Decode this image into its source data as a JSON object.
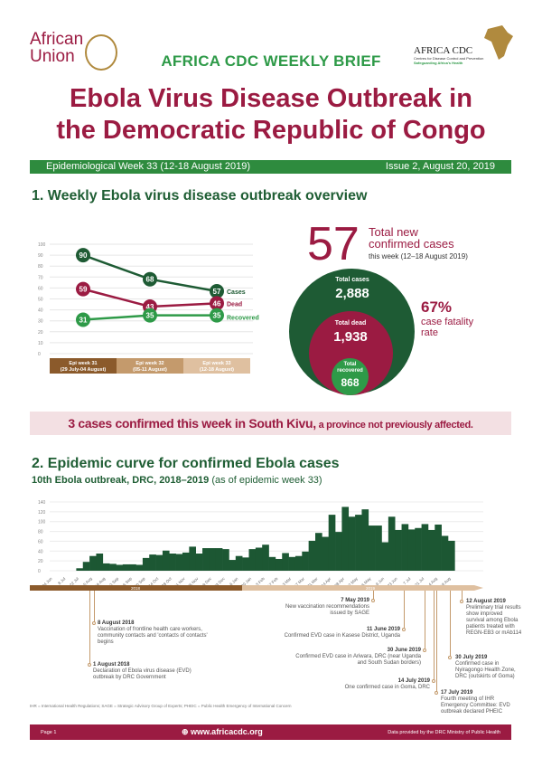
{
  "header": {
    "au_logo_line1": "African",
    "au_logo_line2": "Union",
    "brief": "AFRICA CDC WEEKLY BRIEF",
    "cdc_logo": "AFRICA CDC",
    "cdc_sub": "Centres for Disease Control and Prevention",
    "cdc_tag": "Safeguarding Africa's Health",
    "title_line1": "Ebola Virus Disease Outbreak in",
    "title_line2": "the Democratic Republic of Congo",
    "week": "Epidemiological  Week 33 (12-18 August 2019)",
    "issue": "Issue 2, August 20, 2019"
  },
  "section1": {
    "heading": "1. Weekly Ebola virus disease outbreak overview"
  },
  "chart_data": [
    {
      "type": "line",
      "ylim": [
        0,
        100
      ],
      "yticks": [
        0,
        10,
        20,
        30,
        40,
        50,
        60,
        70,
        80,
        90,
        100
      ],
      "grid": true,
      "legend": "right",
      "categories": [
        [
          "Epi week 31",
          "(29 July-04 August)"
        ],
        [
          "Epi week  32",
          "(05-11 August)"
        ],
        [
          "Epi week  33",
          "(12-18 August)"
        ]
      ],
      "series": [
        {
          "name": "Cases",
          "values": [
            90,
            68,
            57
          ],
          "color": "#1e5b34"
        },
        {
          "name": "Dead",
          "values": [
            59,
            43,
            46
          ],
          "color": "#9b1b42"
        },
        {
          "name": "Recovered",
          "values": [
            31,
            35,
            35
          ],
          "color": "#2e9a48"
        }
      ]
    },
    {
      "type": "bar",
      "title": "10th Ebola outbreak, DRC, 2018–2019",
      "subtitle": "(as of epidemic week 33)",
      "ylim": [
        0,
        140
      ],
      "yticks": [
        0,
        20,
        40,
        60,
        80,
        100,
        120,
        140
      ],
      "grid": true,
      "xtick_labels": [
        "24 Jun",
        "8 Jul",
        "22 Jul",
        "5 Aug",
        "19 Aug",
        "2 Sep",
        "16 Sep",
        "30 Sep",
        "14 Oct",
        "28 Oct",
        "11 Nov",
        "25 Nov",
        "9 Dec",
        "23 Dec",
        "6 Jan",
        "20 Jan",
        "3 Feb",
        "17 Feb",
        "3 Mar",
        "17 Mar",
        "31 Mar",
        "14 Apr",
        "28 Apr",
        "12 May",
        "26 May",
        "9 Jun",
        "23 Jun",
        "7 Jul",
        "21 Jul",
        "4 Aug",
        "18 Aug"
      ],
      "values": [
        0,
        0,
        0,
        0,
        5,
        18,
        30,
        35,
        15,
        14,
        12,
        13,
        13,
        12,
        26,
        33,
        32,
        41,
        35,
        34,
        37,
        49,
        35,
        46,
        46,
        46,
        44,
        22,
        30,
        27,
        44,
        47,
        53,
        28,
        24,
        36,
        28,
        30,
        39,
        61,
        77,
        69,
        114,
        79,
        130,
        110,
        114,
        125,
        92,
        92,
        58,
        110,
        83,
        95,
        84,
        87,
        95,
        83,
        94,
        71,
        61
      ],
      "color": "#1c5733",
      "years": [
        "2018",
        "2019"
      ]
    }
  ],
  "stats": {
    "new_cases": "57",
    "new_cases_l1": "Total new",
    "new_cases_l2": "confirmed cases",
    "new_cases_period": "this week (12–18 August 2019)",
    "total_cases_label": "Total cases",
    "total_cases": "2,888",
    "total_dead_label": "Total dead",
    "total_dead": "1,938",
    "total_recovered_label": "Total recovered",
    "total_recovered": "868",
    "cfr": "67%",
    "cfr_label1": "case fatality",
    "cfr_label2": "rate"
  },
  "banner": {
    "bold": "3 cases confirmed this week in South Kivu,",
    "rest": " a province not previously affected."
  },
  "section2": {
    "heading": "2. Epidemic curve for confirmed Ebola cases"
  },
  "events": [
    {
      "date": "8 August 2018",
      "text": "Vaccination of frontline health care workers, community contacts and 'contacts of contacts' begins"
    },
    {
      "date": "1 August 2018",
      "text": "Declaration of Ebola virus disease (EVD) outbreak by DRC Government"
    },
    {
      "date": "7 May 2019",
      "text": "New vaccination recommendations issued by SAGE"
    },
    {
      "date": "11 June 2019",
      "text": "Confirmed EVD case in Kasese District, Uganda"
    },
    {
      "date": "30 June 2019",
      "text": "Confirmed EVD case in Ariwara, DRC (near Uganda and South Sudan borders)"
    },
    {
      "date": "14 July 2019",
      "text": "One confirmed case in Goma, DRC"
    },
    {
      "date": "17 July 2019",
      "text": "Fourth meeting of IHR Emergency Committee: EVD outbreak declared PHEIC"
    },
    {
      "date": "30 July 2019",
      "text": "Confirmed case in Nyiragongo Health Zone, DRC (outskirts of Goma)"
    },
    {
      "date": "12 August 2019",
      "text": "Preliminary trial results show improved survival among Ebola patients treated with REGN-EB3 or mAb114"
    }
  ],
  "footnote": "IHR = International Health Regulations; SAGE = Strategic Advisory Group of Experts; PHEIC = Public Health Emergency of International Concern",
  "footer": {
    "page": "Page 1",
    "url": "www.africacdc.org",
    "source": "Data provided by the DRC Ministry of Public Health"
  }
}
